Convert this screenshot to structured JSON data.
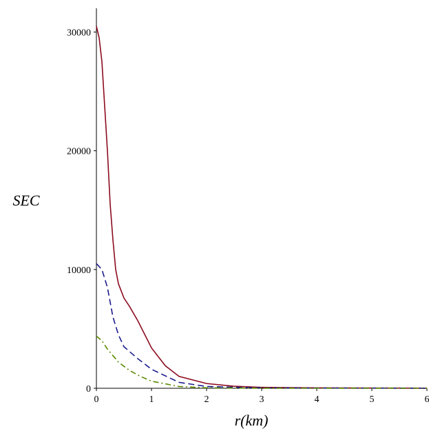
{
  "chart_data": {
    "type": "line",
    "x_label": "r(km)",
    "y_label": "SEC",
    "xlim": [
      0,
      6
    ],
    "xticks": [
      0,
      1,
      2,
      3,
      4,
      5,
      6
    ],
    "ylim": [
      0,
      32000
    ],
    "yticks": [
      0,
      10000,
      20000,
      30000
    ],
    "series": [
      {
        "name": "red",
        "color": "#8b0a1e",
        "dash": "solid",
        "x": [
          0,
          0.05,
          0.1,
          0.2,
          0.25,
          0.3,
          0.35,
          0.4,
          0.5,
          0.6,
          0.75,
          1,
          1.25,
          1.5,
          2,
          2.5,
          3,
          4,
          6
        ],
        "values": [
          30500,
          29500,
          27500,
          20000,
          15500,
          12500,
          10000,
          8800,
          7600,
          6900,
          5700,
          3400,
          1900,
          1000,
          400,
          170,
          80,
          30,
          10
        ]
      },
      {
        "name": "blue",
        "color": "#1a1a8c",
        "dash": "dashed",
        "x": [
          0,
          0.1,
          0.2,
          0.3,
          0.4,
          0.5,
          0.75,
          1,
          1.5,
          2,
          3,
          6
        ],
        "values": [
          10500,
          10000,
          8500,
          6000,
          4500,
          3500,
          2500,
          1600,
          500,
          150,
          30,
          0
        ]
      },
      {
        "name": "green",
        "color": "#5a8a00",
        "dash": "dashdot",
        "x": [
          0,
          0.1,
          0.2,
          0.4,
          0.6,
          0.8,
          1,
          1.5,
          2,
          3,
          6
        ],
        "values": [
          4400,
          4000,
          3300,
          2200,
          1500,
          1000,
          600,
          150,
          40,
          5,
          0
        ]
      }
    ]
  }
}
